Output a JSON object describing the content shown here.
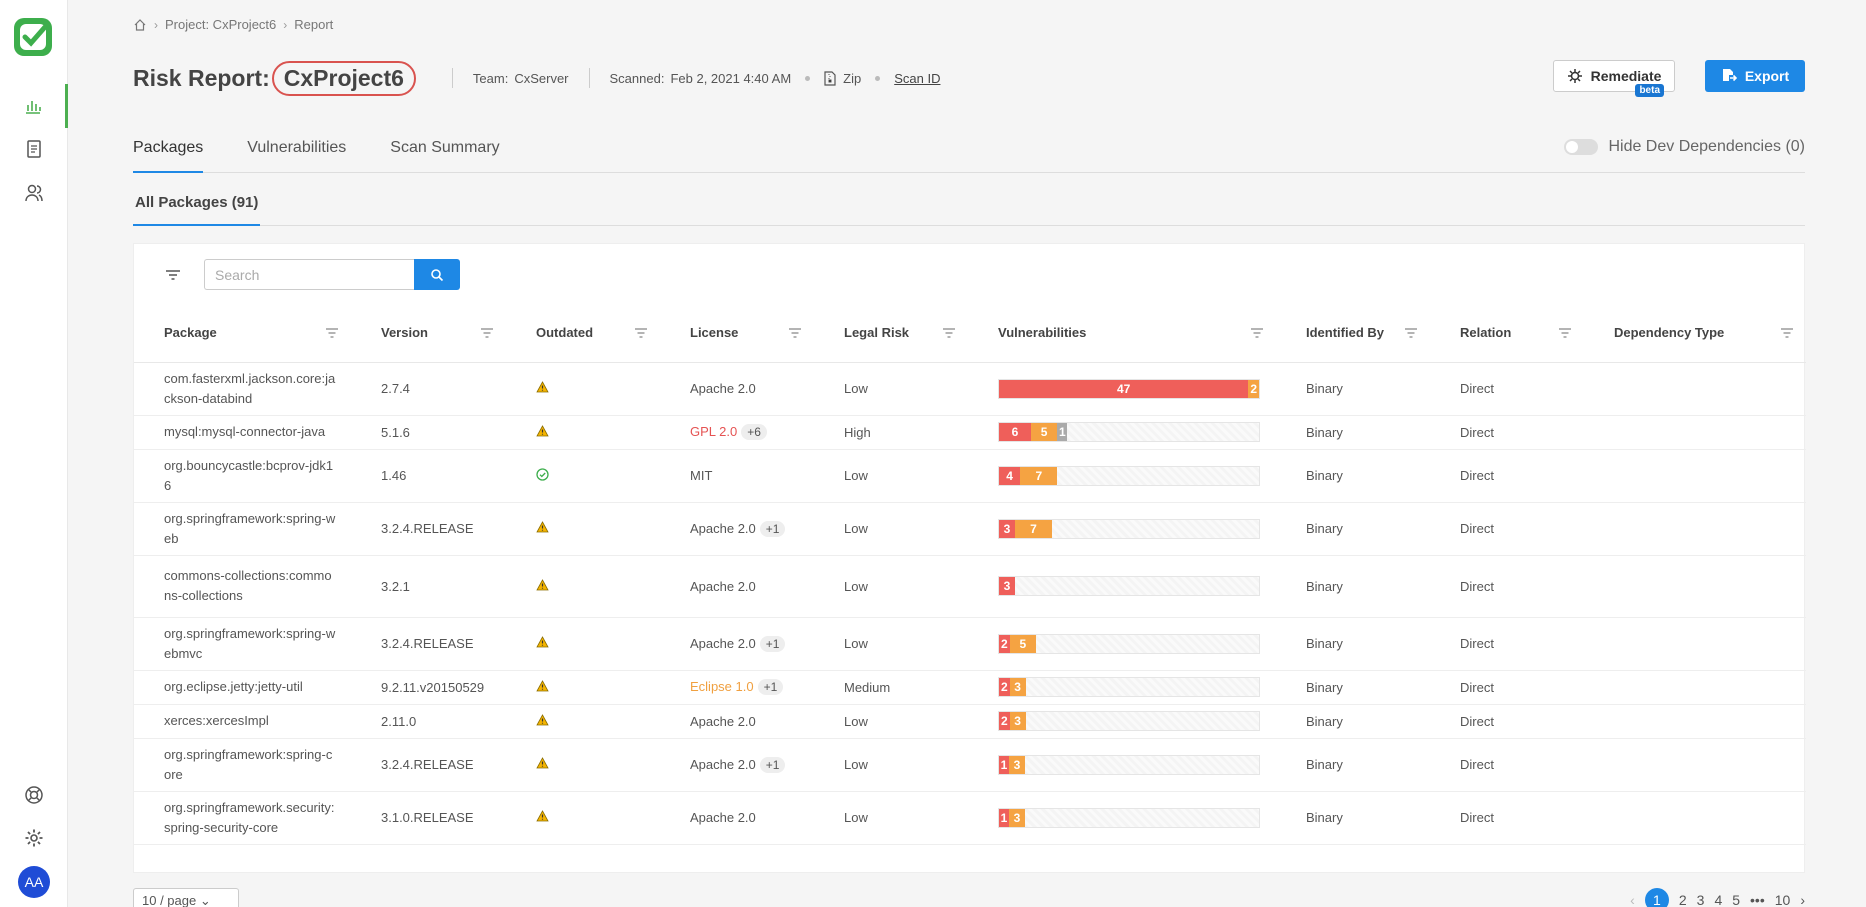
{
  "nav": {
    "logo_icon": "checkmarx-logo",
    "items": [
      {
        "icon": "bar-chart-icon",
        "active": true
      },
      {
        "icon": "report-icon",
        "active": false
      },
      {
        "icon": "users-icon",
        "active": false
      }
    ],
    "bottom": [
      {
        "icon": "support-icon"
      },
      {
        "icon": "gear-icon"
      }
    ],
    "avatar_initials": "AA"
  },
  "breadcrumb": {
    "items": [
      "Project: CxProject6",
      "Report"
    ]
  },
  "header": {
    "title_prefix": "Risk Report:",
    "project_name": "CxProject6",
    "team_label": "Team:",
    "team_value": "CxServer",
    "scanned_label": "Scanned:",
    "scanned_value": "Feb 2, 2021 4:40 AM",
    "source_type": "Zip",
    "scan_id_link": "Scan ID",
    "remediate_label": "Remediate",
    "beta_badge": "beta",
    "export_label": "Export"
  },
  "tabs": [
    "Packages",
    "Vulnerabilities",
    "Scan Summary"
  ],
  "toggle_label": "Hide Dev Dependencies (0)",
  "subtab": "All Packages (91)",
  "search": {
    "placeholder": "Search"
  },
  "columns": [
    "Package",
    "Version",
    "Outdated",
    "License",
    "Legal Risk",
    "Vulnerabilities",
    "Identified By",
    "Relation",
    "Dependency Type"
  ],
  "rows": [
    {
      "package": "com.fasterxml.jackson.core:jackson-databind",
      "version": "2.7.4",
      "outdated": true,
      "license": "Apache 2.0",
      "license_style": "",
      "license_plus": "",
      "legal_risk": "Low",
      "vuln": {
        "high": 47,
        "medium": 2,
        "low": 0
      },
      "identified_by": "Binary",
      "relation": "Direct",
      "dep_type": ""
    },
    {
      "package": "mysql:mysql-connector-java",
      "version": "5.1.6",
      "outdated": true,
      "license": "GPL 2.0",
      "license_style": "red",
      "license_plus": "+6",
      "legal_risk": "High",
      "vuln": {
        "high": 6,
        "medium": 5,
        "low": 1
      },
      "identified_by": "Binary",
      "relation": "Direct",
      "dep_type": ""
    },
    {
      "package": "org.bouncycastle:bcprov-jdk16",
      "version": "1.46",
      "outdated": false,
      "license": "MIT",
      "license_style": "",
      "license_plus": "",
      "legal_risk": "Low",
      "vuln": {
        "high": 4,
        "medium": 7,
        "low": 0
      },
      "identified_by": "Binary",
      "relation": "Direct",
      "dep_type": ""
    },
    {
      "package": "org.springframework:spring-web",
      "version": "3.2.4.RELEASE",
      "outdated": true,
      "license": "Apache 2.0",
      "license_style": "",
      "license_plus": "+1",
      "legal_risk": "Low",
      "vuln": {
        "high": 3,
        "medium": 7,
        "low": 0
      },
      "identified_by": "Binary",
      "relation": "Direct",
      "dep_type": ""
    },
    {
      "package": "commons-collections:commons-collections",
      "version": "3.2.1",
      "outdated": true,
      "license": "Apache 2.0",
      "license_style": "",
      "license_plus": "",
      "legal_risk": "Low",
      "vuln": {
        "high": 3,
        "medium": 0,
        "low": 0
      },
      "identified_by": "Binary",
      "relation": "Direct",
      "dep_type": ""
    },
    {
      "package": "org.springframework:spring-webmvc",
      "version": "3.2.4.RELEASE",
      "outdated": true,
      "license": "Apache 2.0",
      "license_style": "",
      "license_plus": "+1",
      "legal_risk": "Low",
      "vuln": {
        "high": 2,
        "medium": 5,
        "low": 0
      },
      "identified_by": "Binary",
      "relation": "Direct",
      "dep_type": ""
    },
    {
      "package": "org.eclipse.jetty:jetty-util",
      "version": "9.2.11.v20150529",
      "outdated": true,
      "license": "Eclipse 1.0",
      "license_style": "orange",
      "license_plus": "+1",
      "legal_risk": "Medium",
      "vuln": {
        "high": 2,
        "medium": 3,
        "low": 0
      },
      "identified_by": "Binary",
      "relation": "Direct",
      "dep_type": ""
    },
    {
      "package": "xerces:xercesImpl",
      "version": "2.11.0",
      "outdated": true,
      "license": "Apache 2.0",
      "license_style": "",
      "license_plus": "",
      "legal_risk": "Low",
      "vuln": {
        "high": 2,
        "medium": 3,
        "low": 0
      },
      "identified_by": "Binary",
      "relation": "Direct",
      "dep_type": ""
    },
    {
      "package": "org.springframework:spring-core",
      "version": "3.2.4.RELEASE",
      "outdated": true,
      "license": "Apache 2.0",
      "license_style": "",
      "license_plus": "+1",
      "legal_risk": "Low",
      "vuln": {
        "high": 1,
        "medium": 3,
        "low": 0
      },
      "identified_by": "Binary",
      "relation": "Direct",
      "dep_type": ""
    },
    {
      "package": "org.springframework.security:spring-security-core",
      "version": "3.1.0.RELEASE",
      "outdated": true,
      "license": "Apache 2.0",
      "license_style": "",
      "license_plus": "",
      "legal_risk": "Low",
      "vuln": {
        "high": 1,
        "medium": 3,
        "low": 0
      },
      "identified_by": "Binary",
      "relation": "Direct",
      "dep_type": ""
    }
  ],
  "pagination": {
    "page_size": "10 / page",
    "pages": [
      "1",
      "2",
      "3",
      "4",
      "5",
      "•••",
      "10"
    ],
    "current": "1"
  },
  "colors": {
    "accent": "#1e88e5",
    "high": "#ef5f5a",
    "medium": "#f5a342",
    "low": "#aaaaaa",
    "nav_active": "#4caf50"
  }
}
